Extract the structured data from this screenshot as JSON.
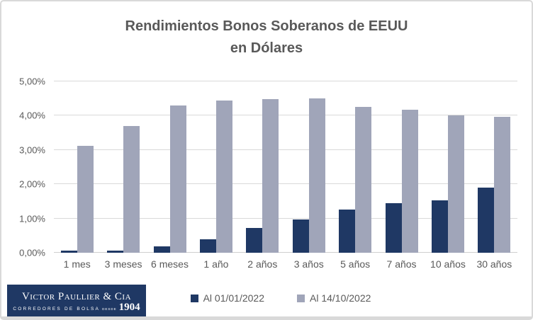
{
  "title": {
    "line1": "Rendimientos Bonos Soberanos de EEUU",
    "line2": "en Dólares"
  },
  "chart_data": {
    "type": "bar",
    "title": "Rendimientos Bonos Soberanos de EEUU en Dólares",
    "categories": [
      "1 mes",
      "3 meses",
      "6 meses",
      "1 año",
      "2 años",
      "3 años",
      "5 años",
      "7 años",
      "10 años",
      "30 años"
    ],
    "series": [
      {
        "name": "Al 01/01/2022",
        "color": "#1f3864",
        "values": [
          0.06,
          0.06,
          0.19,
          0.39,
          0.73,
          0.97,
          1.26,
          1.44,
          1.52,
          1.9
        ]
      },
      {
        "name": "Al 14/10/2022",
        "color": "#a0a5b9",
        "values": [
          3.12,
          3.7,
          4.3,
          4.45,
          4.48,
          4.5,
          4.26,
          4.17,
          4.0,
          3.97
        ]
      }
    ],
    "xlabel": "",
    "ylabel": "",
    "ylim": [
      0,
      5
    ],
    "ytick_labels": [
      "0,00%",
      "1,00%",
      "2,00%",
      "3,00%",
      "4,00%",
      "5,00%"
    ],
    "grid": true,
    "legend_position": "bottom"
  },
  "logo": {
    "name": "Victor Paullier & Cia",
    "subtitle": "Corredores de Bolsa",
    "since": "desde",
    "year": "1904",
    "background": "#1f3864"
  },
  "colors": {
    "series1": "#1f3864",
    "series2": "#a0a5b9",
    "text": "#595959",
    "gridline": "#d9d9d9",
    "card_border": "#d9d9d9"
  }
}
